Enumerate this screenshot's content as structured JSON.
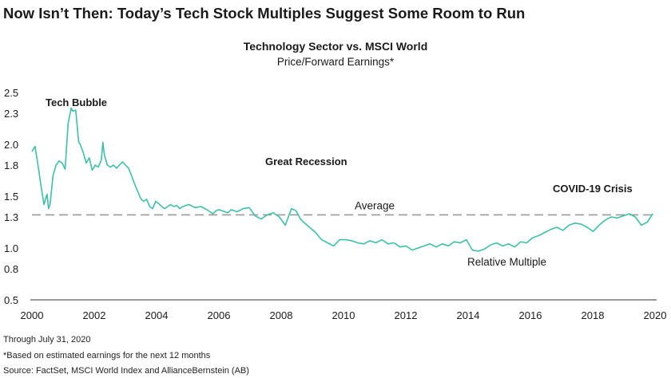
{
  "headline": "Now Isn’t Then: Today’s Tech Stock Multiples Suggest Some Room to Run",
  "footnotes": {
    "through": "Through July 31, 2020",
    "basis": "*Based on estimated earnings for the next 12 months",
    "source": "Source: FactSet, MSCI World Index and AllianceBernstein (AB)"
  },
  "colors": {
    "line": "#3dbfa8",
    "average": "#9a9a9a",
    "axis": "#333333"
  },
  "chart_data": {
    "type": "line",
    "title": "Technology Sector vs. MSCI World",
    "subtitle": "Price/Forward Earnings*",
    "xlabel": "",
    "ylabel": "",
    "xlim": [
      2000,
      2020.6
    ],
    "ylim": [
      0.5,
      2.5
    ],
    "xticks": [
      "2000",
      "2002",
      "2004",
      "2006",
      "2008",
      "2010",
      "2012",
      "2014",
      "2016",
      "2018",
      "2020"
    ],
    "yticks": [
      "2.5",
      "2.3",
      "2.0",
      "1.8",
      "1.5",
      "1.3",
      "1.0",
      "0.8",
      "0.5"
    ],
    "average": {
      "label": "Average",
      "value": 1.32
    },
    "annotations": {
      "tech_bubble": "Tech Bubble",
      "great_recession": "Great Recession",
      "covid": "COVID-19 Crisis",
      "relative_multiple": "Relative Multiple"
    },
    "series": [
      {
        "name": "Relative Multiple",
        "x": [
          2000.0,
          2000.1,
          2000.2,
          2000.3,
          2000.4,
          2000.5,
          2000.55,
          2000.6,
          2000.7,
          2000.8,
          2000.9,
          2001.0,
          2001.1,
          2001.2,
          2001.3,
          2001.35,
          2001.45,
          2001.55,
          2001.6,
          2001.7,
          2001.8,
          2001.9,
          2002.0,
          2002.1,
          2002.2,
          2002.3,
          2002.35,
          2002.4,
          2002.5,
          2002.6,
          2002.7,
          2002.8,
          2002.9,
          2003.0,
          2003.1,
          2003.2,
          2003.3,
          2003.4,
          2003.5,
          2003.6,
          2003.7,
          2003.8,
          2003.9,
          2004.0,
          2004.1,
          2004.2,
          2004.3,
          2004.4,
          2004.5,
          2004.6,
          2004.7,
          2004.8,
          2004.9,
          2005.0,
          2005.2,
          2005.4,
          2005.6,
          2005.8,
          2006.0,
          2006.1,
          2006.2,
          2006.3,
          2006.5,
          2006.6,
          2006.8,
          2007.0,
          2007.2,
          2007.4,
          2007.6,
          2007.8,
          2008.0,
          2008.2,
          2008.4,
          2008.6,
          2008.75,
          2008.9,
          2009.0,
          2009.2,
          2009.4,
          2009.6,
          2009.8,
          2010.0,
          2010.2,
          2010.4,
          2010.6,
          2010.8,
          2011.0,
          2011.2,
          2011.4,
          2011.6,
          2011.8,
          2012.0,
          2012.2,
          2012.4,
          2012.6,
          2012.8,
          2013.0,
          2013.2,
          2013.4,
          2013.6,
          2013.8,
          2014.0,
          2014.2,
          2014.4,
          2014.6,
          2014.8,
          2015.0,
          2015.2,
          2015.4,
          2015.6,
          2015.8,
          2016.0,
          2016.2,
          2016.4,
          2016.6,
          2016.8,
          2017.0,
          2017.2,
          2017.4,
          2017.6,
          2017.8,
          2018.0,
          2018.2,
          2018.4,
          2018.6,
          2018.8,
          2019.0,
          2019.2,
          2019.4,
          2019.6,
          2019.8,
          2020.0,
          2020.2,
          2020.4,
          2020.58
        ],
        "values": [
          1.93,
          1.98,
          1.8,
          1.6,
          1.42,
          1.52,
          1.38,
          1.42,
          1.7,
          1.8,
          1.84,
          1.82,
          1.76,
          2.2,
          2.35,
          2.32,
          2.33,
          2.02,
          2.0,
          1.92,
          1.82,
          1.87,
          1.75,
          1.8,
          1.78,
          1.85,
          2.02,
          1.9,
          1.8,
          1.78,
          1.8,
          1.77,
          1.8,
          1.83,
          1.8,
          1.77,
          1.7,
          1.62,
          1.55,
          1.48,
          1.45,
          1.47,
          1.4,
          1.38,
          1.45,
          1.43,
          1.4,
          1.38,
          1.4,
          1.42,
          1.4,
          1.41,
          1.38,
          1.4,
          1.42,
          1.39,
          1.4,
          1.37,
          1.33,
          1.36,
          1.37,
          1.36,
          1.34,
          1.37,
          1.35,
          1.38,
          1.39,
          1.31,
          1.28,
          1.32,
          1.34,
          1.3,
          1.22,
          1.38,
          1.36,
          1.28,
          1.25,
          1.2,
          1.15,
          1.08,
          1.05,
          1.02,
          1.08,
          1.08,
          1.07,
          1.05,
          1.04,
          1.07,
          1.05,
          1.08,
          1.04,
          1.05,
          1.01,
          1.02,
          0.98,
          1.0,
          1.02,
          1.04,
          1.01,
          1.04,
          1.02,
          1.06,
          1.05,
          1.08,
          0.98,
          0.97,
          0.99,
          1.03,
          1.05,
          1.02,
          1.04,
          1.01,
          1.06,
          1.05,
          1.1,
          1.12,
          1.15,
          1.18,
          1.2,
          1.17,
          1.22,
          1.24,
          1.23,
          1.2,
          1.16,
          1.22,
          1.27,
          1.3,
          1.29,
          1.31,
          1.33,
          1.3,
          1.22,
          1.25,
          1.33
        ]
      }
    ]
  }
}
